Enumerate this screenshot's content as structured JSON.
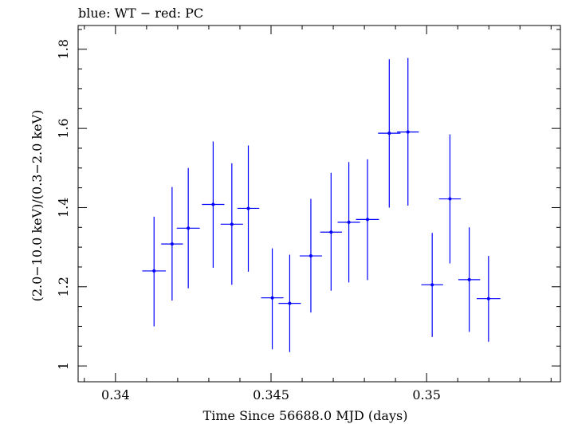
{
  "chart_data": {
    "type": "scatter",
    "title": "blue: WT − red: PC",
    "xlabel": "Time Since 56688.0 MJD (days)",
    "ylabel": "(2.0−10.0 keV)/(0.3−2.0 keV)",
    "xlim": [
      0.3388,
      0.3543
    ],
    "ylim": [
      0.96,
      1.86
    ],
    "x_ticks": [
      0.34,
      0.345,
      0.35
    ],
    "x_tick_labels": [
      "0.34",
      "0.345",
      "0.35"
    ],
    "y_ticks": [
      1.0,
      1.2,
      1.4,
      1.6,
      1.8
    ],
    "y_tick_labels": [
      "1",
      "1.2",
      "1.4",
      "1.6",
      "1.8"
    ],
    "grid": false,
    "series": [
      {
        "color": "#0000ff",
        "points": [
          {
            "x": 0.34124,
            "y": 1.24,
            "xerr": 0.00038,
            "ylo": 1.1,
            "yhi": 1.377
          },
          {
            "x": 0.34182,
            "y": 1.308,
            "xerr": 0.00035,
            "ylo": 1.165,
            "yhi": 1.452
          },
          {
            "x": 0.34234,
            "y": 1.348,
            "xerr": 0.00037,
            "ylo": 1.196,
            "yhi": 1.5
          },
          {
            "x": 0.34314,
            "y": 1.408,
            "xerr": 0.00036,
            "ylo": 1.248,
            "yhi": 1.567
          },
          {
            "x": 0.34374,
            "y": 1.358,
            "xerr": 0.00036,
            "ylo": 1.205,
            "yhi": 1.512
          },
          {
            "x": 0.34427,
            "y": 1.398,
            "xerr": 0.00035,
            "ylo": 1.238,
            "yhi": 1.557
          },
          {
            "x": 0.34504,
            "y": 1.172,
            "xerr": 0.00036,
            "ylo": 1.042,
            "yhi": 1.297
          },
          {
            "x": 0.3456,
            "y": 1.158,
            "xerr": 0.00036,
            "ylo": 1.035,
            "yhi": 1.281
          },
          {
            "x": 0.34628,
            "y": 1.278,
            "xerr": 0.00036,
            "ylo": 1.135,
            "yhi": 1.422
          },
          {
            "x": 0.34693,
            "y": 1.338,
            "xerr": 0.00035,
            "ylo": 1.19,
            "yhi": 1.488
          },
          {
            "x": 0.3475,
            "y": 1.363,
            "xerr": 0.00036,
            "ylo": 1.211,
            "yhi": 1.515
          },
          {
            "x": 0.3481,
            "y": 1.37,
            "xerr": 0.00037,
            "ylo": 1.217,
            "yhi": 1.522
          },
          {
            "x": 0.3488,
            "y": 1.588,
            "xerr": 0.00036,
            "ylo": 1.4,
            "yhi": 1.775
          },
          {
            "x": 0.3494,
            "y": 1.591,
            "xerr": 0.00035,
            "ylo": 1.405,
            "yhi": 1.778
          },
          {
            "x": 0.35018,
            "y": 1.205,
            "xerr": 0.00035,
            "ylo": 1.073,
            "yhi": 1.336
          },
          {
            "x": 0.35075,
            "y": 1.422,
            "xerr": 0.00035,
            "ylo": 1.259,
            "yhi": 1.585
          },
          {
            "x": 0.35137,
            "y": 1.218,
            "xerr": 0.00035,
            "ylo": 1.086,
            "yhi": 1.35
          },
          {
            "x": 0.35199,
            "y": 1.17,
            "xerr": 0.00038,
            "ylo": 1.061,
            "yhi": 1.278
          }
        ]
      }
    ]
  }
}
